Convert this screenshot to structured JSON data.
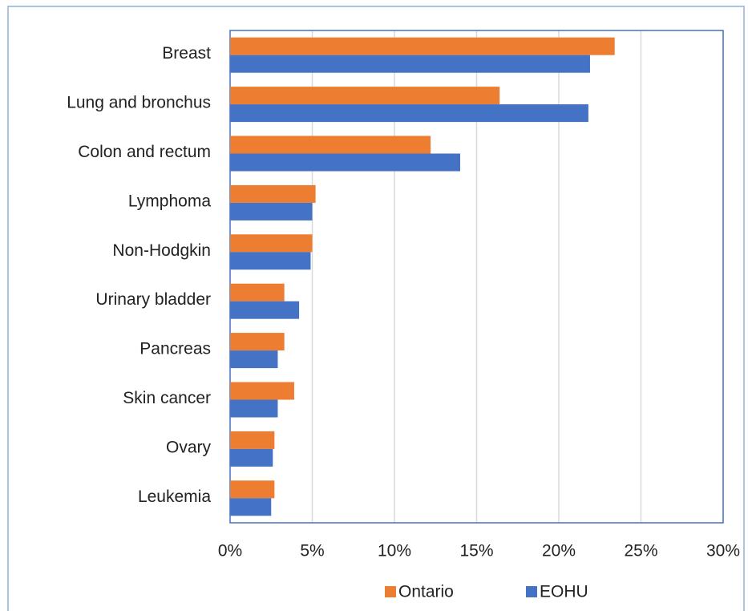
{
  "chart_data": {
    "type": "hbar",
    "categories": [
      "Breast",
      "Lung and bronchus",
      "Colon and rectum",
      "Lymphoma",
      "Non-Hodgkin",
      "Urinary bladder",
      "Pancreas",
      "Skin cancer",
      "Ovary",
      "Leukemia"
    ],
    "series": [
      {
        "name": "Ontario",
        "color": "#ED7D31",
        "values": [
          23.4,
          16.4,
          12.2,
          5.2,
          5.0,
          3.3,
          3.3,
          3.9,
          2.7,
          2.7
        ]
      },
      {
        "name": "EOHU",
        "color": "#4472C4",
        "values": [
          21.9,
          21.8,
          14.0,
          5.0,
          4.9,
          4.2,
          2.9,
          2.9,
          2.6,
          2.5
        ]
      }
    ],
    "xlim": [
      0,
      30
    ],
    "xticks": [
      {
        "value": 0,
        "label": "0%"
      },
      {
        "value": 5,
        "label": "5%"
      },
      {
        "value": 10,
        "label": "10%"
      },
      {
        "value": 15,
        "label": "15%"
      },
      {
        "value": 20,
        "label": "20%"
      },
      {
        "value": 25,
        "label": "25%"
      },
      {
        "value": 30,
        "label": "30%"
      }
    ],
    "grid": true,
    "legend": "bottom"
  }
}
